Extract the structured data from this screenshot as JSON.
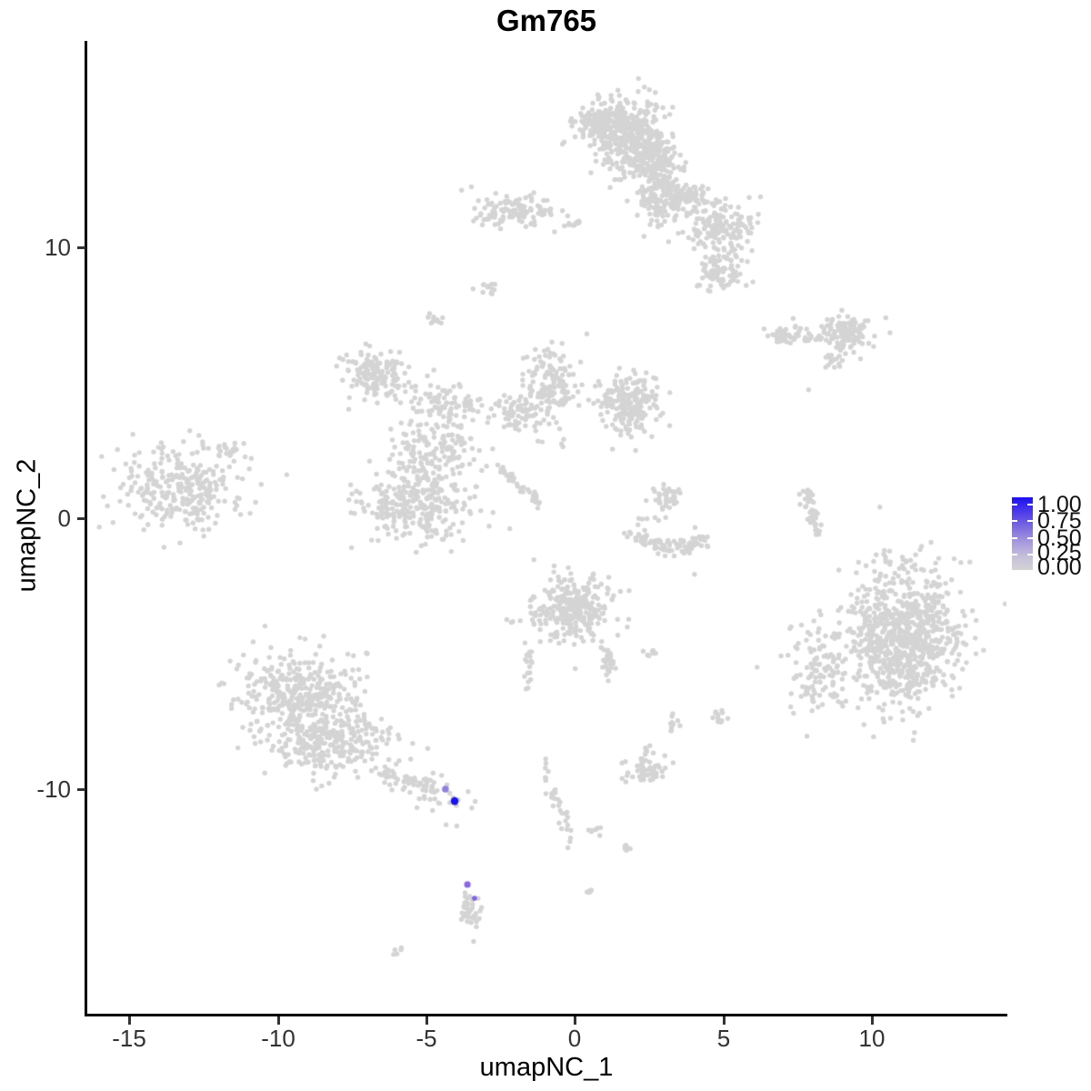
{
  "chart_data": {
    "type": "scatter",
    "title": "Gm765",
    "xlabel": "umapNC_1",
    "ylabel": "umapNC_2",
    "xlim": [
      -16.4,
      14.5
    ],
    "ylim": [
      -18.3,
      17.6
    ],
    "xticks": [
      -15,
      -10,
      -5,
      0,
      5,
      10
    ],
    "yticks": [
      10,
      0,
      -10
    ],
    "xtick_labels": [
      "-15",
      "-10",
      "-5",
      "0",
      "5",
      "10"
    ],
    "ytick_labels": [
      "10",
      "0",
      "-10"
    ],
    "grid": false,
    "legend_position": "right",
    "colorbar": {
      "labels": [
        "1.00",
        "0.75",
        "0.50",
        "0.25",
        "0.00"
      ],
      "low_color": "#d3d3d3",
      "high_color": "#1b10f0"
    },
    "base_point_color": "#d4d4d4",
    "point_radius_px": 2.7,
    "clusters": [
      {
        "cx": 1.76,
        "cy": 14.09,
        "rx": 1.3,
        "ry": 1.35,
        "n": 380
      },
      {
        "cx": 0.84,
        "cy": 14.6,
        "rx": 0.8,
        "ry": 0.7,
        "n": 140
      },
      {
        "cx": 2.68,
        "cy": 13.26,
        "rx": 0.9,
        "ry": 0.9,
        "n": 160
      },
      {
        "cx": 2.92,
        "cy": 11.81,
        "rx": 0.75,
        "ry": 1.1,
        "n": 130
      },
      {
        "cx": 3.9,
        "cy": 11.91,
        "rx": 0.8,
        "ry": 0.5,
        "n": 70
      },
      {
        "cx": 4.88,
        "cy": 10.81,
        "rx": 1.15,
        "ry": 1.0,
        "n": 150
      },
      {
        "cx": 4.93,
        "cy": 9.06,
        "rx": 0.8,
        "ry": 0.85,
        "n": 90
      },
      {
        "cx": -2.06,
        "cy": 11.34,
        "rx": 1.35,
        "ry": 0.6,
        "n": 110
      },
      {
        "cx": -0.08,
        "cy": 10.91,
        "rx": 0.45,
        "ry": 0.2,
        "n": 10
      },
      {
        "cx": -2.95,
        "cy": 8.52,
        "rx": 0.3,
        "ry": 0.28,
        "n": 12
      },
      {
        "cx": -4.63,
        "cy": 7.32,
        "rx": 0.3,
        "ry": 0.28,
        "n": 12
      },
      {
        "cx": -6.71,
        "cy": 5.3,
        "rx": 1.05,
        "ry": 0.85,
        "n": 150
      },
      {
        "cx": -4.45,
        "cy": 4.26,
        "rx": 1.2,
        "ry": 0.75,
        "n": 90
      },
      {
        "cx": -4.72,
        "cy": 2.35,
        "rx": 1.45,
        "ry": 1.25,
        "n": 150
      },
      {
        "cx": -5.34,
        "cy": 0.47,
        "rx": 1.85,
        "ry": 1.4,
        "n": 270
      },
      {
        "cx": -2.06,
        "cy": 3.86,
        "rx": 1.05,
        "ry": 0.7,
        "n": 65
      },
      {
        "cx": -0.84,
        "cy": 4.9,
        "rx": 1.0,
        "ry": 1.45,
        "n": 150
      },
      {
        "cx": 1.82,
        "cy": 4.13,
        "rx": 1.0,
        "ry": 1.05,
        "n": 210
      },
      {
        "shape": "chain",
        "x1": -2.52,
        "y1": 1.91,
        "x2": -1.15,
        "y2": 0.47,
        "jitter": 0.07,
        "n": 42
      },
      {
        "cx": -13.23,
        "cy": 1.21,
        "rx": 2.0,
        "ry": 1.45,
        "n": 290
      },
      {
        "cx": -11.51,
        "cy": 2.48,
        "rx": 0.45,
        "ry": 0.3,
        "n": 16
      },
      {
        "cx": 7.32,
        "cy": 6.71,
        "rx": 0.85,
        "ry": 0.33,
        "n": 55
      },
      {
        "cx": 9.19,
        "cy": 6.81,
        "rx": 0.9,
        "ry": 0.6,
        "n": 110
      },
      {
        "cx": 8.7,
        "cy": 5.84,
        "rx": 0.38,
        "ry": 0.3,
        "n": 16
      },
      {
        "cx": 7.87,
        "cy": 4.7,
        "rx": 0.05,
        "ry": 0.05,
        "n": 1
      },
      {
        "shape": "chain",
        "x1": 7.75,
        "y1": 1.21,
        "x2": 8.21,
        "y2": -0.87,
        "jitter": 0.12,
        "n": 45
      },
      {
        "cx": 11.15,
        "cy": -4.36,
        "rx": 1.95,
        "ry": 2.7,
        "n": 850
      },
      {
        "cx": 8.24,
        "cy": -5.7,
        "rx": 1.05,
        "ry": 1.75,
        "n": 120
      },
      {
        "shape": "chain",
        "x1": 1.82,
        "y1": -0.5,
        "x2": 3.13,
        "y2": -1.17,
        "jitter": 0.15,
        "n": 50
      },
      {
        "shape": "chain",
        "x1": 3.13,
        "y1": -1.17,
        "x2": 4.6,
        "y2": -0.74,
        "jitter": 0.15,
        "n": 50
      },
      {
        "cx": 3.13,
        "cy": 0.81,
        "rx": 0.55,
        "ry": 0.42,
        "n": 40
      },
      {
        "cx": 2.68,
        "cy": 0.0,
        "rx": 0.5,
        "ry": 0.12,
        "n": 6
      },
      {
        "cx": 3.99,
        "cy": -2.08,
        "rx": 0.05,
        "ry": 0.05,
        "n": 1
      },
      {
        "cx": -0.14,
        "cy": -3.36,
        "rx": 1.35,
        "ry": 1.15,
        "n": 300
      },
      {
        "cx": 1.09,
        "cy": -5.3,
        "rx": 0.28,
        "ry": 0.55,
        "n": 30
      },
      {
        "shape": "chain",
        "x1": -1.45,
        "y1": -4.93,
        "x2": -1.7,
        "y2": -6.44,
        "jitter": 0.08,
        "n": 16
      },
      {
        "cx": 2.55,
        "cy": -5.0,
        "rx": 0.3,
        "ry": 0.18,
        "n": 9
      },
      {
        "cx": 4.88,
        "cy": -7.38,
        "rx": 0.28,
        "ry": 0.33,
        "n": 12
      },
      {
        "cx": 3.35,
        "cy": -7.55,
        "rx": 0.22,
        "ry": 0.38,
        "n": 11
      },
      {
        "cx": 2.43,
        "cy": -8.59,
        "rx": 0.18,
        "ry": 0.22,
        "n": 7
      },
      {
        "cx": 2.28,
        "cy": -9.33,
        "rx": 0.7,
        "ry": 0.5,
        "n": 55
      },
      {
        "cx": -0.93,
        "cy": -9.36,
        "rx": 0.13,
        "ry": 0.4,
        "n": 7
      },
      {
        "shape": "chain",
        "x1": -0.69,
        "y1": -9.97,
        "x2": -0.11,
        "y2": -11.98,
        "jitter": 0.1,
        "n": 26
      },
      {
        "cx": 0.69,
        "cy": -11.54,
        "rx": 0.3,
        "ry": 0.15,
        "n": 7
      },
      {
        "cx": 1.73,
        "cy": -12.18,
        "rx": 0.25,
        "ry": 0.15,
        "n": 7
      },
      {
        "cx": 0.5,
        "cy": -13.76,
        "rx": 0.12,
        "ry": 0.18,
        "n": 5
      },
      {
        "cx": -9.25,
        "cy": -6.44,
        "rx": 2.1,
        "ry": 1.5,
        "n": 360
      },
      {
        "cx": -8.27,
        "cy": -8.22,
        "rx": 2.1,
        "ry": 1.15,
        "n": 280
      },
      {
        "shape": "chain",
        "x1": -6.35,
        "y1": -9.33,
        "x2": -3.99,
        "y2": -10.4,
        "jitter": 0.28,
        "n": 80
      },
      {
        "cx": -4.36,
        "cy": -11.31,
        "rx": 0.06,
        "ry": 0.06,
        "n": 1
      },
      {
        "cx": -3.99,
        "cy": -11.38,
        "rx": 0.06,
        "ry": 0.06,
        "n": 1
      },
      {
        "cx": -3.53,
        "cy": -14.3,
        "rx": 0.32,
        "ry": 0.9,
        "n": 38
      },
      {
        "cx": -6.04,
        "cy": -15.94,
        "rx": 0.2,
        "ry": 0.13,
        "n": 5
      }
    ],
    "highlights": [
      {
        "x": -4.36,
        "y": -10.0,
        "value": 0.5,
        "color": "#9181dd",
        "r": 3.8
      },
      {
        "x": -4.05,
        "y": -10.44,
        "value": 1.0,
        "color": "#1b13eb",
        "r": 4.3
      },
      {
        "x": -3.62,
        "y": -13.52,
        "value": 0.65,
        "color": "#8a68e8",
        "r": 3.6
      },
      {
        "x": -3.38,
        "y": -14.03,
        "value": 0.6,
        "color": "#8165e2",
        "r": 2.8
      }
    ]
  }
}
